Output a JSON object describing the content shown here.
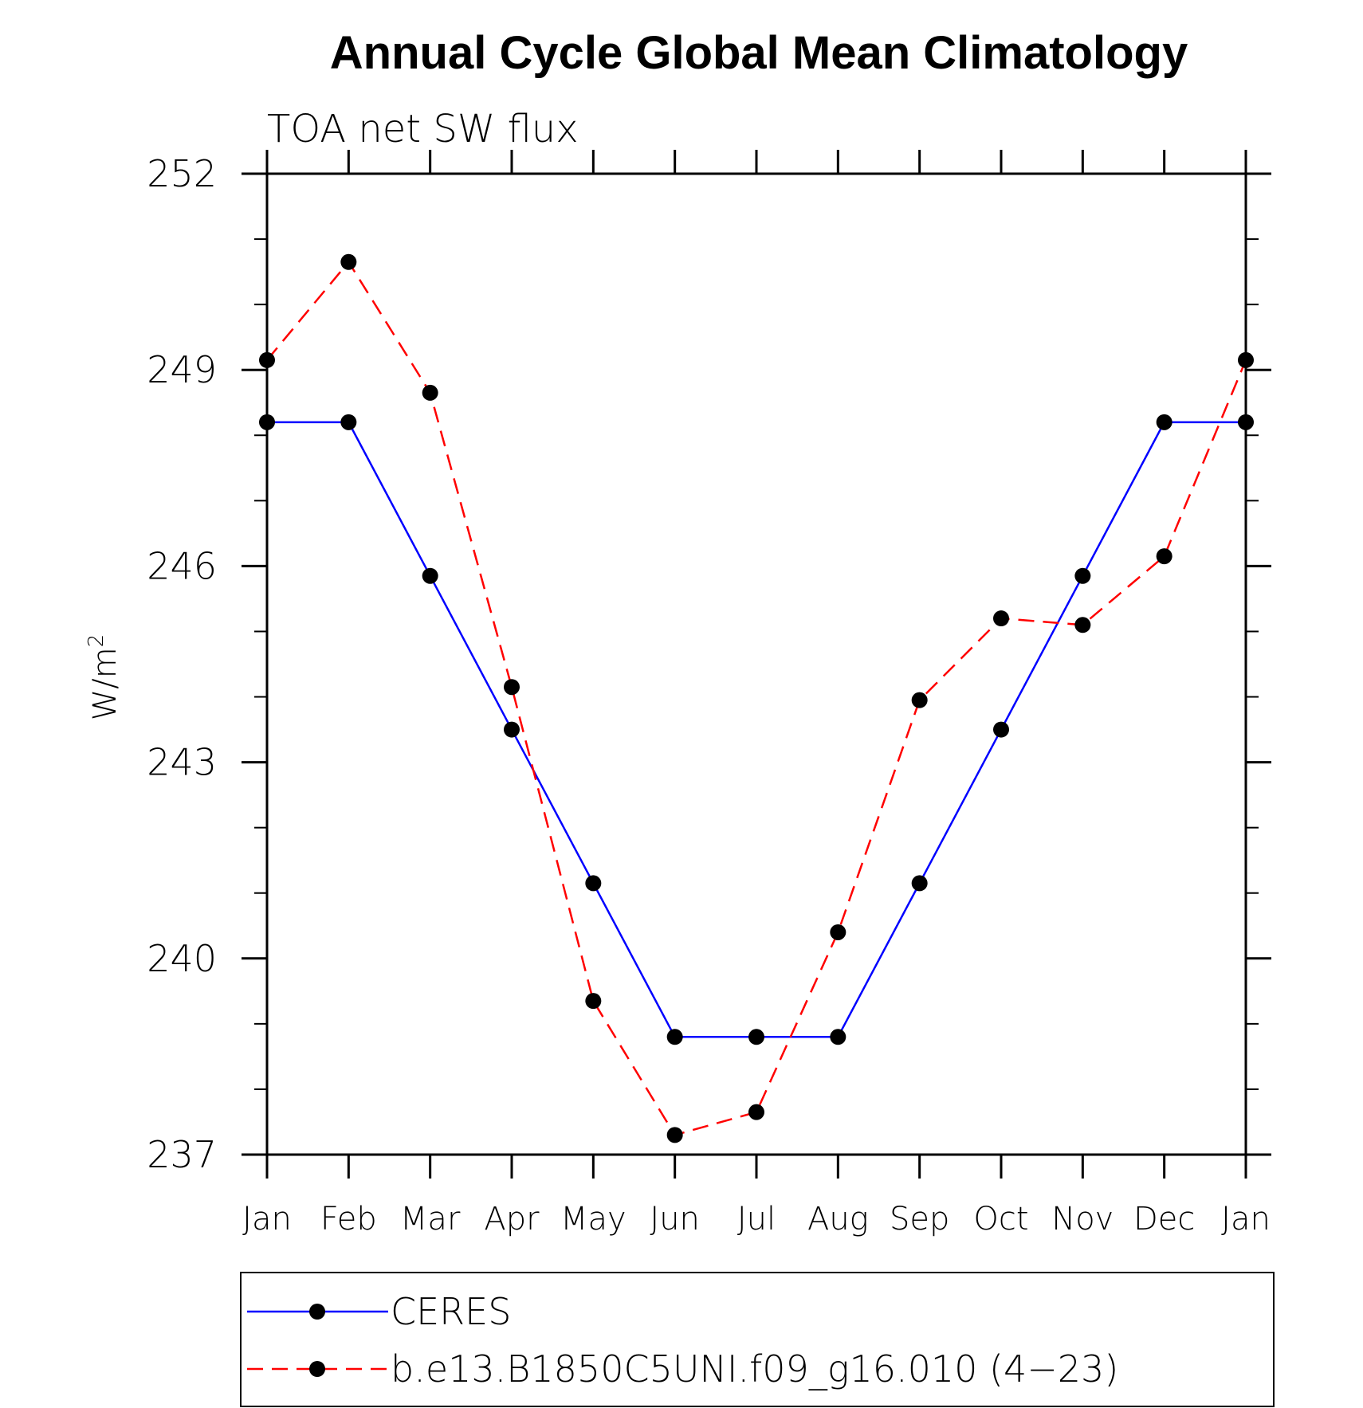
{
  "chart_data": {
    "type": "line",
    "title": "Annual Cycle Global Mean Climatology",
    "subtitle": "TOA net SW flux",
    "xlabel": "",
    "ylabel": "W/m",
    "ylabel_sup": "2",
    "ylim": [
      237,
      252
    ],
    "yticks": [
      252,
      249,
      246,
      243,
      240,
      237
    ],
    "categories": [
      "Jan",
      "Feb",
      "Mar",
      "Apr",
      "May",
      "Jun",
      "Jul",
      "Aug",
      "Sep",
      "Oct",
      "Nov",
      "Dec",
      "Jan"
    ],
    "series": [
      {
        "name": "CERES",
        "color": "#0000ff",
        "dash": "solid",
        "values": [
          248.2,
          248.2,
          245.85,
          243.5,
          241.15,
          238.8,
          238.8,
          238.8,
          241.15,
          243.5,
          245.85,
          248.2,
          248.2
        ]
      },
      {
        "name": "b.e13.B1850C5UNI.f09_g16.010 (4−23)",
        "color": "#ff0000",
        "dash": "dashed",
        "values": [
          249.15,
          250.65,
          248.65,
          244.15,
          239.35,
          237.3,
          237.65,
          240.4,
          243.95,
          245.2,
          245.1,
          246.15,
          249.15
        ]
      }
    ],
    "marker_color": "#000000",
    "grid": false,
    "legend_position": "bottom"
  }
}
